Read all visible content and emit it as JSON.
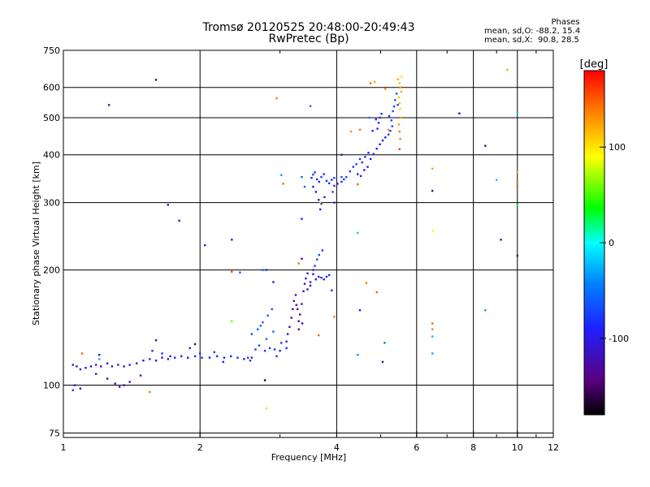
{
  "chart_data": {
    "type": "scatter",
    "title": "Tromsø 20120525 20:48:00-20:49:43",
    "subtitle": "RwPretec (Bp)",
    "xlabel": "Frequency [MHz]",
    "ylabel": "Stationary phase Virtual Height [km]",
    "x_scale": "log",
    "y_scale": "log",
    "xlim": [
      1,
      12
    ],
    "ylim": [
      73,
      750
    ],
    "x_ticks": [
      1,
      2,
      4,
      6,
      8,
      10,
      12
    ],
    "x_minor_ticks": [
      3,
      5,
      7,
      9,
      11
    ],
    "y_ticks": [
      75,
      100,
      200,
      300,
      400,
      500,
      600,
      750
    ],
    "grid": true,
    "stats": {
      "header": "Phases",
      "line1": "mean, sd,O: -88.2, 15.4",
      "line2": "mean, sd,X:  90.8, 28.5"
    },
    "colorbar": {
      "label": "[deg]",
      "range": [
        -180,
        180
      ],
      "ticks": [
        100,
        0,
        -100
      ]
    },
    "series": [
      {
        "points": [
          [
            1.05,
            113,
            -112
          ],
          [
            1.07,
            112,
            -108
          ],
          [
            1.09,
            110,
            -115
          ],
          [
            1.12,
            111,
            -100
          ],
          [
            1.15,
            112,
            -118
          ],
          [
            1.18,
            113,
            -105
          ],
          [
            1.21,
            112,
            -120
          ],
          [
            1.25,
            114,
            -110
          ],
          [
            1.28,
            112,
            -125
          ],
          [
            1.32,
            113,
            -112
          ],
          [
            1.36,
            112,
            -118
          ],
          [
            1.4,
            113,
            -100
          ],
          [
            1.45,
            114,
            -110
          ],
          [
            1.5,
            116,
            -105
          ],
          [
            1.55,
            117,
            -95
          ],
          [
            1.6,
            116,
            -108
          ],
          [
            1.65,
            118,
            -112
          ],
          [
            1.7,
            117,
            -100
          ],
          [
            1.76,
            118,
            -92
          ],
          [
            1.82,
            119,
            -98
          ],
          [
            1.88,
            118,
            -105
          ],
          [
            1.95,
            119,
            -95
          ],
          [
            2.02,
            118,
            -90
          ],
          [
            2.1,
            118,
            -100
          ],
          [
            2.18,
            119,
            -88
          ],
          [
            2.26,
            118,
            -95
          ],
          [
            2.34,
            119,
            -90
          ],
          [
            2.42,
            118,
            -85
          ],
          [
            2.5,
            117,
            -92
          ],
          [
            2.58,
            116,
            -85
          ],
          [
            1.06,
            100,
            -112
          ],
          [
            1.09,
            98,
            -118
          ],
          [
            1.3,
            101,
            -130
          ],
          [
            1.33,
            99,
            -125
          ],
          [
            1.36,
            100,
            -128
          ],
          [
            1.4,
            102,
            -120
          ],
          [
            1.25,
            104,
            -135
          ],
          [
            1.48,
            106,
            -140
          ],
          [
            1.18,
            107,
            -110
          ],
          [
            1.57,
            123,
            -85
          ],
          [
            1.65,
            121,
            -80
          ],
          [
            1.72,
            119,
            -95
          ],
          [
            1.9,
            125,
            -112
          ],
          [
            2.0,
            121,
            -85
          ],
          [
            2.15,
            122,
            -75
          ],
          [
            2.25,
            115,
            -90
          ],
          [
            2.6,
            118,
            -110
          ],
          [
            2.65,
            124,
            -80
          ],
          [
            2.7,
            127,
            -70
          ],
          [
            2.78,
            123,
            -80
          ],
          [
            2.85,
            125,
            -75
          ],
          [
            2.92,
            124,
            -82
          ],
          [
            3.0,
            123,
            -88
          ],
          [
            3.1,
            125,
            -95
          ],
          [
            2.95,
            119,
            -78
          ],
          [
            2.6,
            136,
            -70
          ],
          [
            2.68,
            140,
            -65
          ],
          [
            2.75,
            146,
            -60
          ],
          [
            2.82,
            152,
            -62
          ],
          [
            2.88,
            158,
            -58
          ],
          [
            2.72,
            143,
            -55
          ],
          [
            2.8,
            132,
            -50
          ],
          [
            2.9,
            138,
            -52
          ],
          [
            3.02,
            129,
            -80
          ],
          [
            3.1,
            130,
            -90
          ],
          [
            3.12,
            136,
            -120
          ],
          [
            3.15,
            142,
            -125
          ],
          [
            3.18,
            150,
            -118
          ],
          [
            3.2,
            158,
            -130
          ],
          [
            3.22,
            166,
            -122
          ],
          [
            3.25,
            172,
            -128
          ],
          [
            3.28,
            158,
            -135
          ],
          [
            3.3,
            147,
            -125
          ],
          [
            3.32,
            153,
            -138
          ],
          [
            3.35,
            163,
            -120
          ],
          [
            3.38,
            176,
            -110
          ],
          [
            3.4,
            184,
            -112
          ],
          [
            3.42,
            190,
            -118
          ],
          [
            3.45,
            196,
            -115
          ],
          [
            3.36,
            145,
            -125
          ],
          [
            3.3,
            140,
            -130
          ],
          [
            3.26,
            162,
            -132
          ],
          [
            3.5,
            186,
            -108
          ],
          [
            3.55,
            195,
            -105
          ],
          [
            3.6,
            189,
            -102
          ],
          [
            3.65,
            192,
            -98
          ],
          [
            3.7,
            191,
            -100
          ],
          [
            3.75,
            189,
            -95
          ],
          [
            3.8,
            192,
            -92
          ],
          [
            3.85,
            194,
            -90
          ],
          [
            3.58,
            205,
            -80
          ],
          [
            3.62,
            213,
            -75
          ],
          [
            3.66,
            219,
            -70
          ],
          [
            3.72,
            225,
            -78
          ],
          [
            3.55,
            200,
            -85
          ],
          [
            3.45,
            178,
            -112
          ],
          [
            3.5,
            182,
            -115
          ],
          [
            3.52,
            348,
            -85
          ],
          [
            3.55,
            355,
            -82
          ],
          [
            3.58,
            360,
            -80
          ],
          [
            3.62,
            345,
            -85
          ],
          [
            3.66,
            340,
            -88
          ],
          [
            3.7,
            350,
            -80
          ],
          [
            3.75,
            356,
            -85
          ],
          [
            3.6,
            320,
            -100
          ],
          [
            3.65,
            305,
            -102
          ],
          [
            3.7,
            298,
            -105
          ],
          [
            3.76,
            310,
            -98
          ],
          [
            3.55,
            330,
            -95
          ],
          [
            3.68,
            288,
            -90
          ],
          [
            3.8,
            342,
            -82
          ],
          [
            3.85,
            337,
            -85
          ],
          [
            3.9,
            344,
            -80
          ],
          [
            3.95,
            332,
            -88
          ],
          [
            4.02,
            336,
            -85
          ],
          [
            4.1,
            340,
            -80
          ],
          [
            4.15,
            345,
            -78
          ],
          [
            4.2,
            350,
            -75
          ],
          [
            4.28,
            362,
            -80
          ],
          [
            4.35,
            372,
            -82
          ],
          [
            4.42,
            378,
            -78
          ],
          [
            4.5,
            390,
            -80
          ],
          [
            4.55,
            382,
            -85
          ],
          [
            4.62,
            395,
            -82
          ],
          [
            4.7,
            405,
            -85
          ],
          [
            4.45,
            356,
            -100
          ],
          [
            4.52,
            352,
            -102
          ],
          [
            4.6,
            365,
            -98
          ],
          [
            4.68,
            372,
            -100
          ],
          [
            4.75,
            390,
            -95
          ],
          [
            4.82,
            402,
            -92
          ],
          [
            4.9,
            415,
            -98
          ],
          [
            4.98,
            426,
            -95
          ],
          [
            5.05,
            436,
            -100
          ],
          [
            5.12,
            444,
            -105
          ],
          [
            4.92,
            468,
            -85
          ],
          [
            4.95,
            485,
            -88
          ],
          [
            4.98,
            500,
            -82
          ],
          [
            5.02,
            512,
            -80
          ],
          [
            4.88,
            495,
            -85
          ],
          [
            5.2,
            452,
            -80
          ],
          [
            5.25,
            462,
            -78
          ],
          [
            5.3,
            475,
            -75
          ],
          [
            5.28,
            492,
            -70
          ],
          [
            5.32,
            520,
            -72
          ],
          [
            5.35,
            535,
            -68
          ],
          [
            5.38,
            556,
            -65
          ],
          [
            5.42,
            578,
            -60
          ],
          [
            5.45,
            540,
            -70
          ],
          [
            5.22,
            505,
            -90
          ],
          [
            5.46,
            630,
            120
          ],
          [
            5.5,
            615,
            110
          ],
          [
            5.52,
            600,
            130
          ],
          [
            5.55,
            585,
            125
          ],
          [
            5.48,
            565,
            115
          ],
          [
            5.5,
            545,
            120
          ],
          [
            5.52,
            528,
            105
          ],
          [
            5.55,
            500,
            125
          ],
          [
            5.48,
            480,
            130
          ],
          [
            5.5,
            460,
            140
          ],
          [
            5.52,
            440,
            135
          ],
          [
            5.5,
            414,
            160
          ],
          [
            5.56,
            640,
            100
          ],
          [
            1.6,
            628,
            -150
          ],
          [
            1.26,
            540,
            -125
          ],
          [
            2.95,
            562,
            140
          ],
          [
            3.5,
            536,
            -55
          ],
          [
            3.02,
            354,
            -30
          ],
          [
            3.05,
            336,
            145
          ],
          [
            3.35,
            350,
            -55
          ],
          [
            3.4,
            330,
            -60
          ],
          [
            3.95,
            348,
            -70
          ],
          [
            3.92,
            320,
            -75
          ],
          [
            3.95,
            300,
            -80
          ],
          [
            3.35,
            272,
            -90
          ],
          [
            3.68,
            300,
            110
          ],
          [
            4.3,
            460,
            130
          ],
          [
            4.5,
            465,
            140
          ],
          [
            4.75,
            615,
            150
          ],
          [
            4.85,
            620,
            120
          ],
          [
            5.12,
            595,
            140
          ],
          [
            4.72,
            500,
            -40
          ],
          [
            4.1,
            400,
            -140
          ],
          [
            4.1,
            350,
            -70
          ],
          [
            4.45,
            335,
            150
          ],
          [
            4.8,
            462,
            -95
          ],
          [
            4.45,
            250,
            -20
          ],
          [
            5.2,
            465,
            130
          ],
          [
            6.5,
            368,
            125
          ],
          [
            6.5,
            322,
            -145
          ],
          [
            6.52,
            253,
            95
          ],
          [
            7.45,
            513,
            -130
          ],
          [
            8.5,
            422,
            -135
          ],
          [
            9.0,
            344,
            -20
          ],
          [
            9.2,
            240,
            -115
          ],
          [
            10.0,
            360,
            120
          ],
          [
            10.0,
            340,
            140
          ],
          [
            10.0,
            330,
            145
          ],
          [
            10.0,
            295,
            30
          ],
          [
            10.0,
            218,
            -130
          ],
          [
            10.0,
            515,
            -20
          ],
          [
            9.5,
            667,
            120
          ],
          [
            1.8,
            269,
            -115
          ],
          [
            1.7,
            296,
            -125
          ],
          [
            2.05,
            232,
            -110
          ],
          [
            2.35,
            240,
            -105
          ],
          [
            2.35,
            198,
            160
          ],
          [
            2.45,
            197,
            -60
          ],
          [
            2.75,
            200,
            -60
          ],
          [
            2.8,
            200,
            -100
          ],
          [
            2.9,
            186,
            -110
          ],
          [
            2.35,
            147,
            60
          ],
          [
            1.95,
            128,
            -155
          ],
          [
            1.6,
            131,
            -130
          ],
          [
            3.65,
            135,
            150
          ],
          [
            3.95,
            151,
            135
          ],
          [
            3.9,
            177,
            -90
          ],
          [
            3.35,
            214,
            -140
          ],
          [
            3.3,
            208,
            140
          ],
          [
            4.5,
            157,
            -110
          ],
          [
            4.65,
            185,
            140
          ],
          [
            4.9,
            175,
            150
          ],
          [
            5.1,
            129,
            -50
          ],
          [
            4.45,
            120,
            -40
          ],
          [
            5.05,
            115,
            -120
          ],
          [
            6.5,
            145,
            150
          ],
          [
            6.5,
            140,
            140
          ],
          [
            6.5,
            134,
            -20
          ],
          [
            6.5,
            121,
            -30
          ],
          [
            8.5,
            157,
            -30
          ],
          [
            2.8,
            87,
            75
          ],
          [
            1.55,
            96,
            140
          ],
          [
            2.78,
            103,
            -160
          ],
          [
            1.1,
            121,
            150
          ],
          [
            1.2,
            117,
            -30
          ],
          [
            1.05,
            97,
            -80
          ],
          [
            1.2,
            120,
            -110
          ],
          [
            2.55,
            118,
            -70
          ]
        ]
      }
    ]
  }
}
